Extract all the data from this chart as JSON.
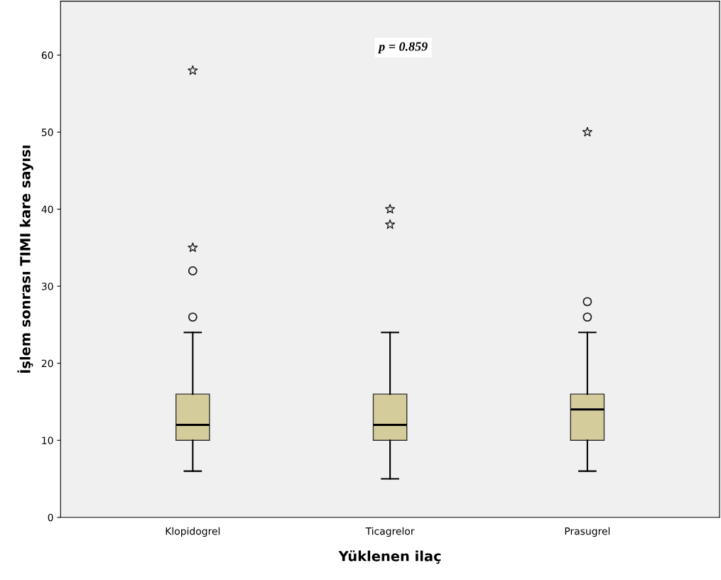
{
  "chart_data": {
    "type": "box",
    "xlabel": "Yüklenen ilaç",
    "ylabel": "İşlem sonrası TIMI kare sayısı",
    "categories": [
      "Klopidogrel",
      "Ticagrelor",
      "Prasugrel"
    ],
    "boxes": [
      {
        "low": 6,
        "q1": 10,
        "median": 12,
        "q3": 16,
        "high": 24,
        "outliers": [
          26,
          32,
          35,
          58
        ]
      },
      {
        "low": 5,
        "q1": 10,
        "median": 12,
        "q3": 16,
        "high": 24,
        "outliers": [
          38,
          40
        ]
      },
      {
        "low": 6,
        "q1": 10,
        "median": 14,
        "q3": 16,
        "high": 24,
        "outliers": [
          26,
          28,
          50
        ]
      }
    ],
    "color": "#d4cc9a",
    "ylim": [
      0,
      67
    ],
    "yticks": [
      0,
      10,
      20,
      30,
      40,
      50,
      60
    ],
    "grid": false,
    "legend": false,
    "annotations": [
      "p = 0.859"
    ]
  }
}
